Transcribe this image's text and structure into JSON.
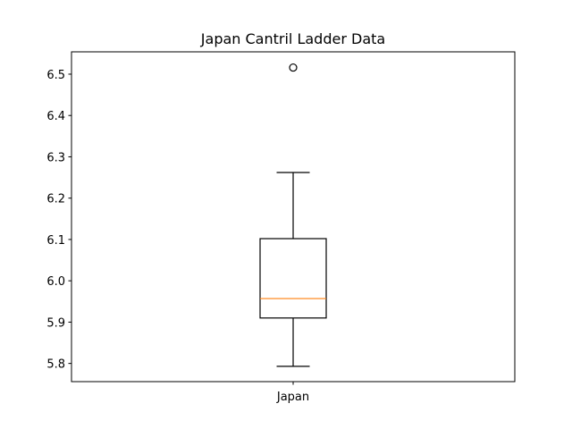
{
  "chart_data": {
    "type": "box",
    "title": "Japan Cantril Ladder Data",
    "xlabel": "",
    "ylabel": "",
    "categories": [
      "Japan"
    ],
    "boxes": [
      {
        "name": "Japan",
        "whisker_low": 5.793,
        "q1": 5.91,
        "median": 5.957,
        "q3": 6.102,
        "whisker_high": 6.262,
        "outliers": [
          6.516
        ]
      }
    ],
    "ylim": [
      5.756,
      6.554
    ],
    "yticks": [
      5.8,
      5.9,
      6.0,
      6.1,
      6.2,
      6.3,
      6.4,
      6.5
    ],
    "ytick_labels": [
      "5.8",
      "5.9",
      "6.0",
      "6.1",
      "6.2",
      "6.3",
      "6.4",
      "6.5"
    ],
    "grid": false,
    "colors": {
      "box": "#000000",
      "median": "#ff7f0e",
      "outlier": "#000000"
    }
  }
}
